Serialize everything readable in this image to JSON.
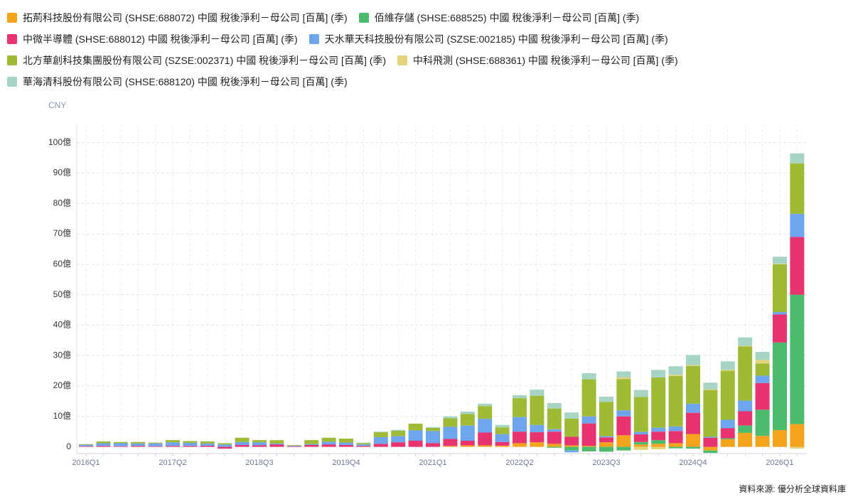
{
  "chart_data": {
    "type": "stacked_bar",
    "y_axis_label": "CNY",
    "source": "資料來源: 優分析全球資料庫",
    "categories": [
      "2016Q1",
      null,
      null,
      null,
      null,
      "2017Q2",
      null,
      null,
      null,
      null,
      "2018Q3",
      null,
      null,
      null,
      null,
      "2019Q4",
      null,
      null,
      null,
      null,
      "2021Q1",
      null,
      null,
      null,
      null,
      "2022Q2",
      null,
      null,
      null,
      null,
      "2023Q3",
      null,
      null,
      null,
      null,
      "2024Q4",
      null,
      null,
      null,
      null,
      "2026Q1",
      null
    ],
    "ylim": [
      -2.2,
      106
    ],
    "yticks": [
      0,
      {
        "value": 10,
        "label": "10億"
      },
      {
        "value": 20,
        "label": "20億"
      },
      {
        "value": 30,
        "label": "30億"
      },
      {
        "value": 40,
        "label": "40億"
      },
      {
        "value": 50,
        "label": "50億"
      },
      {
        "value": 60,
        "label": "60億"
      },
      {
        "value": 70,
        "label": "70億"
      },
      {
        "value": 80,
        "label": "80億"
      },
      {
        "value": 90,
        "label": "90億"
      },
      {
        "value": 100,
        "label": "100億"
      }
    ],
    "grid": true,
    "series": [
      {
        "name": "拓荊科技股份有限公司 (SHSE:688072) 中國 稅後淨利－母公司 [百萬] (季)",
        "color": "#f4a41c",
        "values": [
          null,
          null,
          null,
          null,
          null,
          null,
          null,
          null,
          null,
          null,
          null,
          null,
          null,
          null,
          null,
          null,
          null,
          null,
          null,
          null,
          null,
          0.3,
          0.5,
          0.5,
          0.4,
          1.2,
          1.5,
          1.0,
          0.5,
          0.3,
          1.5,
          3.8,
          0.8,
          1.0,
          1.2,
          4.2,
          -1.2,
          2.5,
          4.6,
          3.6,
          5.5,
          7.5
        ]
      },
      {
        "name": "佰維存儲 (SHSE:688525) 中國 稅後淨利－母公司 [百萬] (季)",
        "color": "#4cbb6c",
        "values": [
          null,
          null,
          null,
          null,
          null,
          null,
          null,
          null,
          null,
          null,
          null,
          null,
          null,
          null,
          null,
          null,
          null,
          null,
          null,
          null,
          null,
          null,
          null,
          null,
          null,
          null,
          null,
          -0.3,
          -1.2,
          -1.5,
          -1.6,
          -1.2,
          0.8,
          1.2,
          -0.5,
          -0.6,
          -0.8,
          0.3,
          2.4,
          8.6,
          28.8,
          42.5
        ]
      },
      {
        "name": "中微半導體 (SHSE:688012) 中國 稅後淨利－母公司 [百萬] (季)",
        "color": "#e8336f",
        "values": [
          0.2,
          0.3,
          0.2,
          0.3,
          0.2,
          0.3,
          0.3,
          0.4,
          -0.6,
          0.6,
          0.5,
          0.8,
          0.2,
          0.6,
          0.8,
          0.6,
          0.3,
          1.0,
          1.5,
          2.0,
          1.2,
          2.3,
          1.5,
          4.2,
          1.2,
          3.8,
          3.3,
          4.0,
          2.8,
          7.4,
          1.6,
          6.2,
          2.5,
          2.8,
          4.0,
          7.0,
          3.0,
          3.3,
          4.7,
          8.8,
          9.2,
          19.0
        ]
      },
      {
        "name": "天水華天科技股份有限公司 (SZSE:002185) 中國 稅後淨利－母公司 [百萬] (季)",
        "color": "#6fa4ef",
        "values": [
          0.5,
          0.9,
          1.0,
          0.8,
          0.9,
          1.2,
          1.0,
          0.7,
          0.8,
          1.0,
          1.0,
          0.3,
          0.2,
          0.3,
          0.9,
          0.8,
          0.5,
          2.2,
          2.0,
          3.4,
          4.0,
          4.0,
          5.0,
          4.5,
          2.6,
          4.8,
          2.4,
          0.8,
          -0.6,
          2.3,
          0.4,
          2.0,
          0.8,
          1.3,
          1.5,
          3.0,
          0.3,
          2.8,
          3.5,
          2.4,
          0.8,
          7.6
        ]
      },
      {
        "name": "北方華創科技集團股份有限公司 (SZSE:002371) 中國 稅後淨利－母公司 [百萬] (季)",
        "color": "#9fba35",
        "values": [
          0.2,
          0.6,
          0.4,
          0.5,
          0.3,
          0.7,
          0.6,
          0.7,
          0.4,
          1.4,
          0.7,
          1.1,
          0.2,
          1.3,
          1.3,
          1.3,
          0.4,
          1.6,
          1.8,
          2.2,
          1.0,
          2.8,
          3.8,
          4.2,
          2.2,
          6.2,
          9.6,
          6.8,
          6.0,
          12.2,
          11.3,
          10.3,
          11.5,
          16.5,
          16.6,
          12.4,
          15.4,
          16.1,
          17.8,
          4.0,
          15.7,
          16.6
        ]
      },
      {
        "name": "中科飛測 (SHSE:688361) 中國 稅後淨利－母公司 [百萬] (季)",
        "color": "#e3d47a",
        "values": [
          null,
          null,
          null,
          null,
          null,
          null,
          null,
          null,
          null,
          null,
          null,
          null,
          null,
          null,
          null,
          null,
          null,
          null,
          null,
          null,
          null,
          null,
          null,
          null,
          null,
          null,
          null,
          null,
          null,
          null,
          null,
          0.5,
          -1.0,
          -0.8,
          0.4,
          0.3,
          0.2,
          0.3,
          0.2,
          1.2,
          0.2,
          -0.6
        ]
      },
      {
        "name": "華海清科股份有限公司 (SHSE:688120) 中國 稅後淨利－母公司 [百萬] (季)",
        "color": "#a6d5c4",
        "values": [
          null,
          null,
          null,
          null,
          null,
          null,
          null,
          null,
          null,
          null,
          null,
          null,
          null,
          null,
          null,
          null,
          0.2,
          0.2,
          0.3,
          null,
          0.3,
          0.6,
          0.8,
          0.8,
          0.8,
          1.0,
          2.0,
          1.8,
          2.0,
          2.0,
          1.7,
          2.0,
          2.3,
          2.5,
          2.8,
          3.3,
          2.2,
          2.8,
          2.8,
          2.6,
          2.3,
          3.3
        ]
      }
    ]
  }
}
